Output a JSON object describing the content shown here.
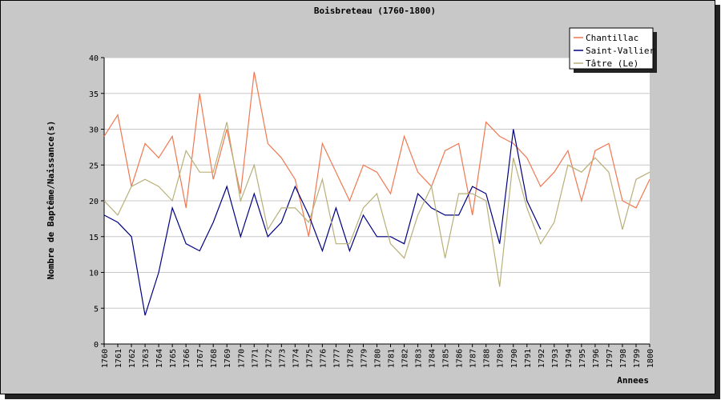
{
  "chart_data": {
    "type": "line",
    "title": "Boisbreteau (1760-1800)",
    "xlabel": "Annees",
    "ylabel": "Nombre de Baptême/Naissance(s)",
    "x": [
      1760,
      1761,
      1762,
      1763,
      1764,
      1765,
      1766,
      1767,
      1768,
      1769,
      1770,
      1771,
      1772,
      1773,
      1774,
      1775,
      1776,
      1777,
      1778,
      1779,
      1780,
      1781,
      1782,
      1783,
      1784,
      1785,
      1786,
      1787,
      1788,
      1789,
      1790,
      1791,
      1792,
      1793,
      1794,
      1795,
      1796,
      1797,
      1798,
      1799,
      1800
    ],
    "ylim": [
      0,
      40
    ],
    "yticks": [
      0,
      5,
      10,
      15,
      20,
      25,
      30,
      35,
      40
    ],
    "grid": true,
    "legend_position": "top-right",
    "series": [
      {
        "name": "Chantillac",
        "color": "#f07850",
        "values": [
          29,
          32,
          22,
          28,
          26,
          29,
          19,
          35,
          23,
          30,
          21,
          38,
          28,
          26,
          23,
          15,
          28,
          24,
          20,
          25,
          24,
          21,
          29,
          24,
          22,
          27,
          28,
          18,
          31,
          29,
          28,
          26,
          22,
          24,
          27,
          20,
          27,
          28,
          20,
          19,
          23
        ]
      },
      {
        "name": "Saint-Vallier",
        "color": "#000080",
        "values": [
          18,
          17,
          15,
          4,
          10,
          19,
          14,
          13,
          17,
          22,
          15,
          21,
          15,
          17,
          22,
          18,
          13,
          19,
          13,
          18,
          15,
          15,
          14,
          21,
          19,
          18,
          18,
          22,
          21,
          14,
          30,
          20,
          16,
          null,
          null,
          null,
          null,
          null,
          null,
          null,
          null
        ]
      },
      {
        "name": "Tâtre (Le)",
        "color": "#b8b078",
        "values": [
          20,
          18,
          22,
          23,
          22,
          20,
          27,
          24,
          24,
          31,
          20,
          25,
          16,
          19,
          19,
          17,
          23,
          14,
          14,
          19,
          21,
          14,
          12,
          18,
          22,
          12,
          21,
          21,
          20,
          8,
          26,
          19,
          14,
          17,
          25,
          24,
          26,
          24,
          16,
          23,
          24
        ]
      }
    ]
  }
}
